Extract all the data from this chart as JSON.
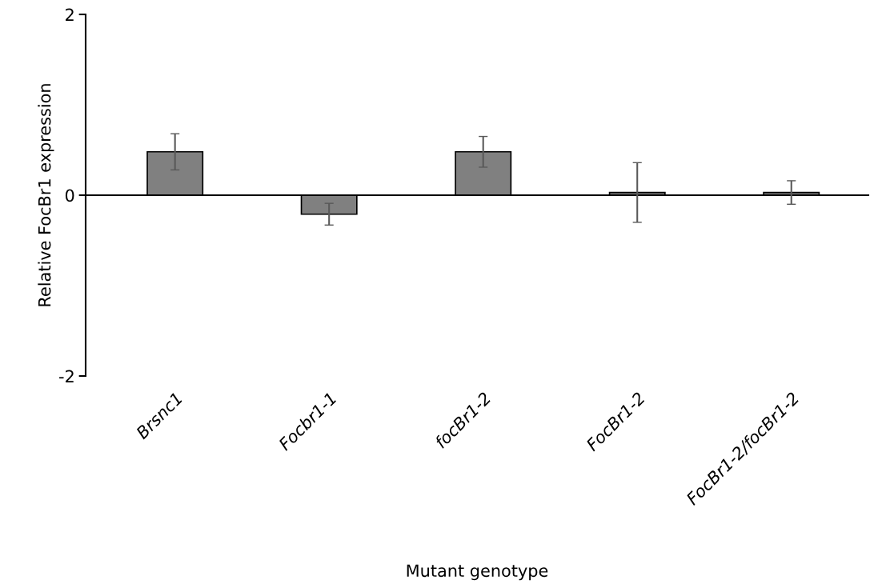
{
  "chart_data": {
    "type": "bar",
    "xlabel": "Mutant genotype",
    "ylabel": "Relative FocBr1 expression",
    "categories": [
      "Brsnc1",
      "Focbr1-1",
      "focBr1-2",
      "FocBr1-2",
      "FocBr1-2/focBr1-2"
    ],
    "values": [
      0.48,
      -0.21,
      0.48,
      0.03,
      0.03
    ],
    "errors": [
      0.2,
      0.12,
      0.17,
      0.33,
      0.13
    ],
    "color": "#808080",
    "ylim": [
      -2,
      2
    ],
    "yticks": [
      -2,
      0,
      2
    ],
    "legend": false
  }
}
